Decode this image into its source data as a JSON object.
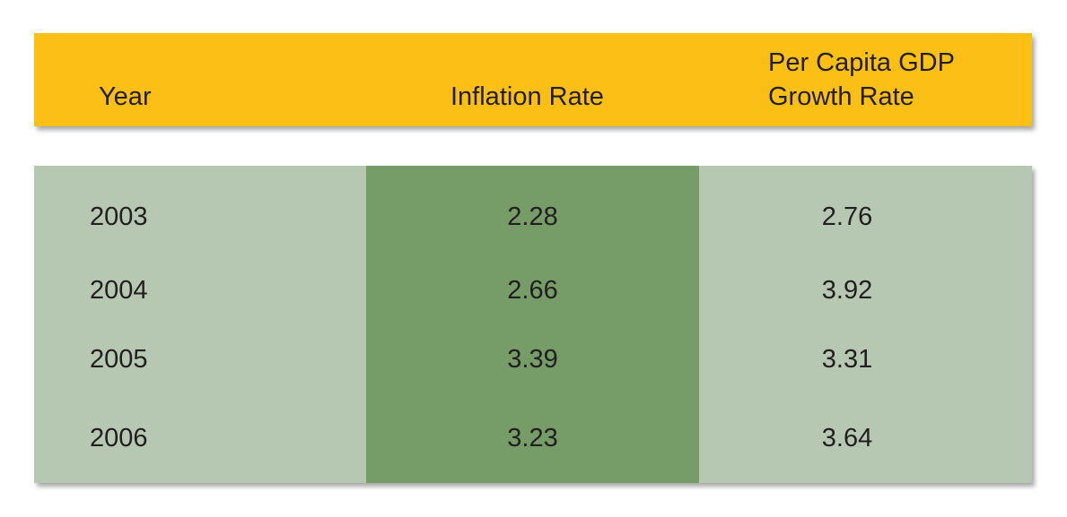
{
  "chart_data": {
    "type": "table",
    "columns": [
      "Year",
      "Inflation Rate",
      "Per Capita GDP Growth Rate"
    ],
    "header": {
      "year": "Year",
      "inflation": "Inflation Rate",
      "gdp_line1": "Per Capita GDP",
      "gdp_line2": "Growth Rate"
    },
    "rows": [
      {
        "year": "2003",
        "inflation": "2.28",
        "gdp": "2.76"
      },
      {
        "year": "2004",
        "inflation": "2.66",
        "gdp": "3.92"
      },
      {
        "year": "2005",
        "inflation": "3.39",
        "gdp": "3.31"
      },
      {
        "year": "2006",
        "inflation": "3.23",
        "gdp": "3.64"
      }
    ]
  },
  "colors": {
    "header_bg": "#fbbf16",
    "body_bg": "#b6c7b2",
    "highlight_col_bg": "#769c68"
  }
}
